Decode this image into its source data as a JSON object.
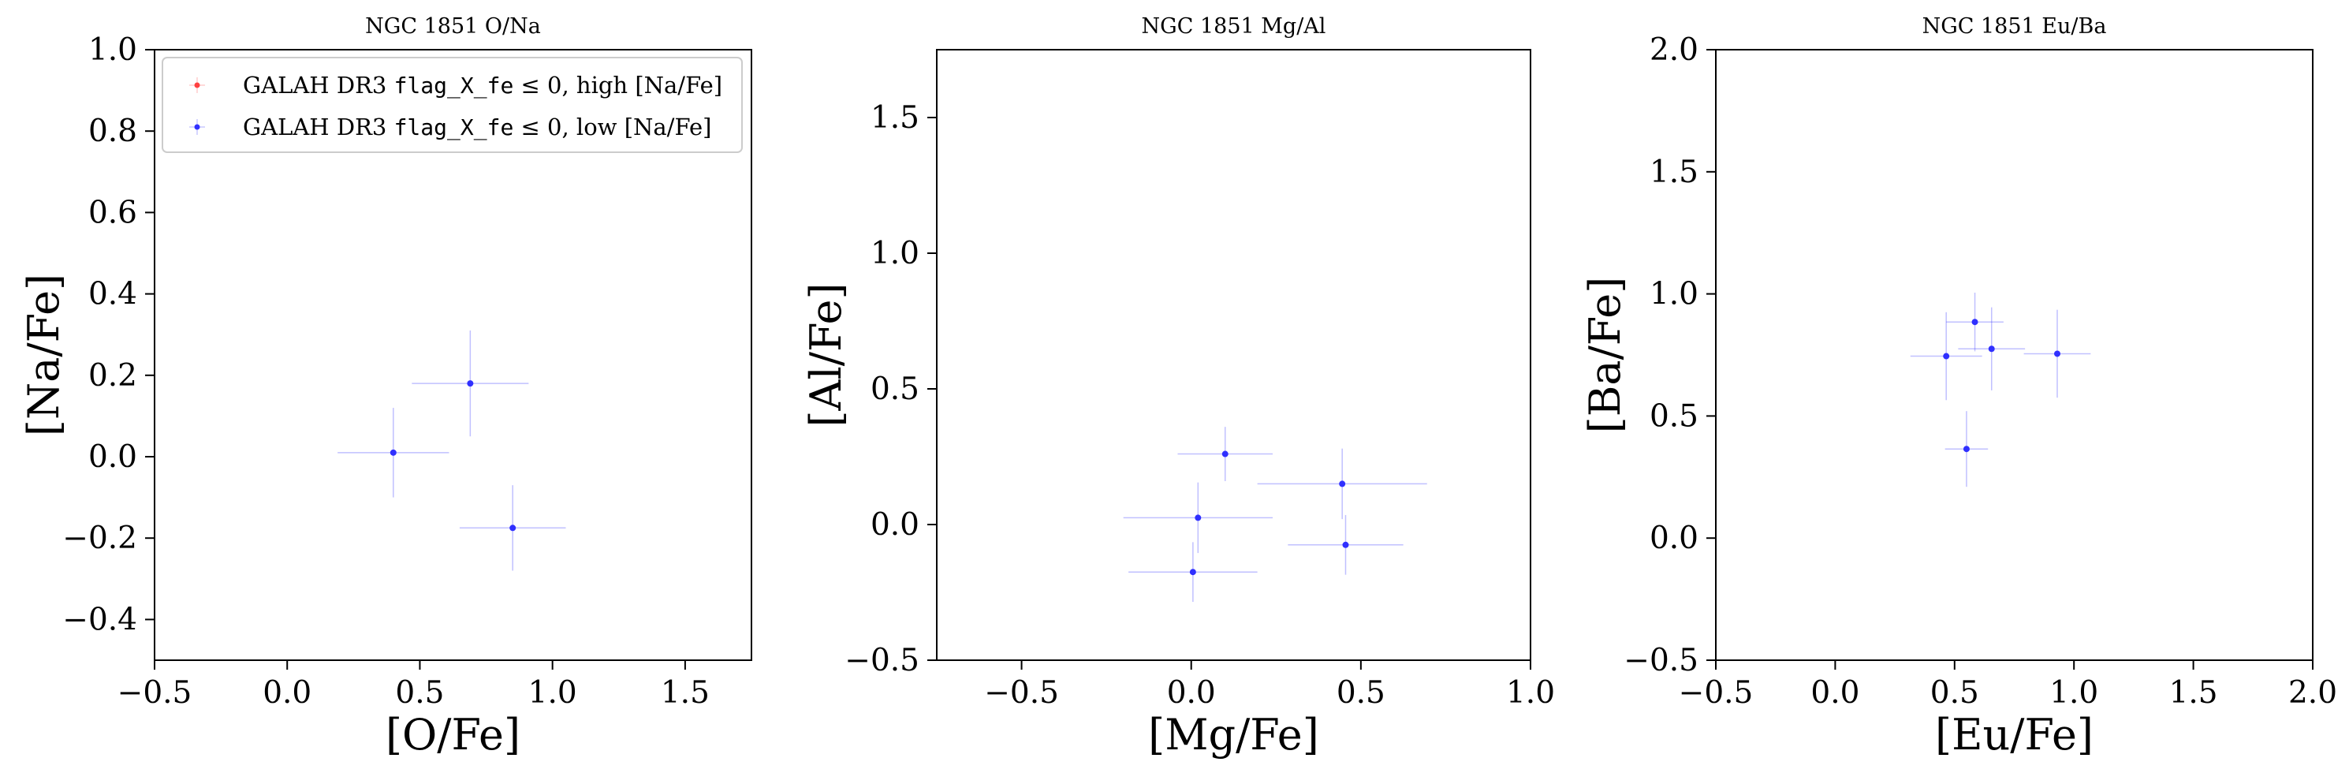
{
  "chart_data": [
    {
      "type": "scatter",
      "title": "NGC 1851 O/Na",
      "xlabel": "[O/Fe]",
      "ylabel": "[Na/Fe]",
      "xlim": [
        -0.5,
        1.75
      ],
      "ylim": [
        -0.5,
        1.0
      ],
      "xticks": [
        -0.5,
        0.0,
        0.5,
        1.0,
        1.5
      ],
      "yticks": [
        -0.4,
        -0.2,
        0.0,
        0.2,
        0.4,
        0.6,
        0.8,
        1.0
      ],
      "xtick_labels": [
        "−0.5",
        "0.0",
        "0.5",
        "1.0",
        "1.5"
      ],
      "ytick_labels": [
        "−0.4",
        "−0.2",
        "0.0",
        "0.2",
        "0.4",
        "0.6",
        "0.8",
        "1.0"
      ],
      "grid": false,
      "legend": {
        "position": "top-left",
        "entries": [
          {
            "prefix": "GALAH DR3 ",
            "code": "flag_X_fe",
            "suffix": " ≤ 0, high [Na/Fe]",
            "color": "#ff4040"
          },
          {
            "prefix": "GALAH DR3 ",
            "code": "flag_X_fe",
            "suffix": " ≤ 0, low [Na/Fe]",
            "color": "#3030ff"
          }
        ]
      },
      "series": [
        {
          "color": "#3030ff",
          "points": [
            {
              "x": 0.4,
              "y": 0.01,
              "xerr": 0.21,
              "yerr": 0.11
            },
            {
              "x": 0.69,
              "y": 0.18,
              "xerr": 0.22,
              "yerr": 0.13
            },
            {
              "x": 0.85,
              "y": -0.175,
              "xerr": 0.2,
              "yerr": 0.105
            }
          ]
        }
      ]
    },
    {
      "type": "scatter",
      "title": "NGC 1851 Mg/Al",
      "xlabel": "[Mg/Fe]",
      "ylabel": "[Al/Fe]",
      "xlim": [
        -0.75,
        1.0
      ],
      "ylim": [
        -0.5,
        1.75
      ],
      "xticks": [
        -0.5,
        0.0,
        0.5,
        1.0
      ],
      "yticks": [
        -0.5,
        0.0,
        0.5,
        1.0,
        1.5
      ],
      "xtick_labels": [
        "−0.5",
        "0.0",
        "0.5",
        "1.0"
      ],
      "ytick_labels": [
        "−0.5",
        "0.0",
        "0.5",
        "1.0",
        "1.5"
      ],
      "grid": false,
      "series": [
        {
          "color": "#3030ff",
          "points": [
            {
              "x": 0.1,
              "y": 0.26,
              "xerr": 0.14,
              "yerr": 0.1
            },
            {
              "x": 0.02,
              "y": 0.025,
              "xerr": 0.22,
              "yerr": 0.13
            },
            {
              "x": 0.005,
              "y": -0.175,
              "xerr": 0.19,
              "yerr": 0.11
            },
            {
              "x": 0.445,
              "y": 0.15,
              "xerr": 0.25,
              "yerr": 0.13
            },
            {
              "x": 0.455,
              "y": -0.075,
              "xerr": 0.17,
              "yerr": 0.11
            }
          ]
        }
      ]
    },
    {
      "type": "scatter",
      "title": "NGC 1851 Eu/Ba",
      "xlabel": "[Eu/Fe]",
      "ylabel": "[Ba/Fe]",
      "xlim": [
        -0.5,
        2.0
      ],
      "ylim": [
        -0.5,
        2.0
      ],
      "xticks": [
        -0.5,
        0.0,
        0.5,
        1.0,
        1.5,
        2.0
      ],
      "yticks": [
        -0.5,
        0.0,
        0.5,
        1.0,
        1.5,
        2.0
      ],
      "xtick_labels": [
        "−0.5",
        "0.0",
        "0.5",
        "1.0",
        "1.5",
        "2.0"
      ],
      "ytick_labels": [
        "−0.5",
        "0.0",
        "0.5",
        "1.0",
        "1.5",
        "2.0"
      ],
      "grid": false,
      "series": [
        {
          "color": "#3030ff",
          "points": [
            {
              "x": 0.585,
              "y": 0.885,
              "xerr": 0.12,
              "yerr": 0.12
            },
            {
              "x": 0.655,
              "y": 0.775,
              "xerr": 0.14,
              "yerr": 0.17
            },
            {
              "x": 0.465,
              "y": 0.745,
              "xerr": 0.15,
              "yerr": 0.18
            },
            {
              "x": 0.93,
              "y": 0.755,
              "xerr": 0.14,
              "yerr": 0.18
            },
            {
              "x": 0.55,
              "y": 0.365,
              "xerr": 0.09,
              "yerr": 0.155
            }
          ]
        }
      ]
    }
  ]
}
